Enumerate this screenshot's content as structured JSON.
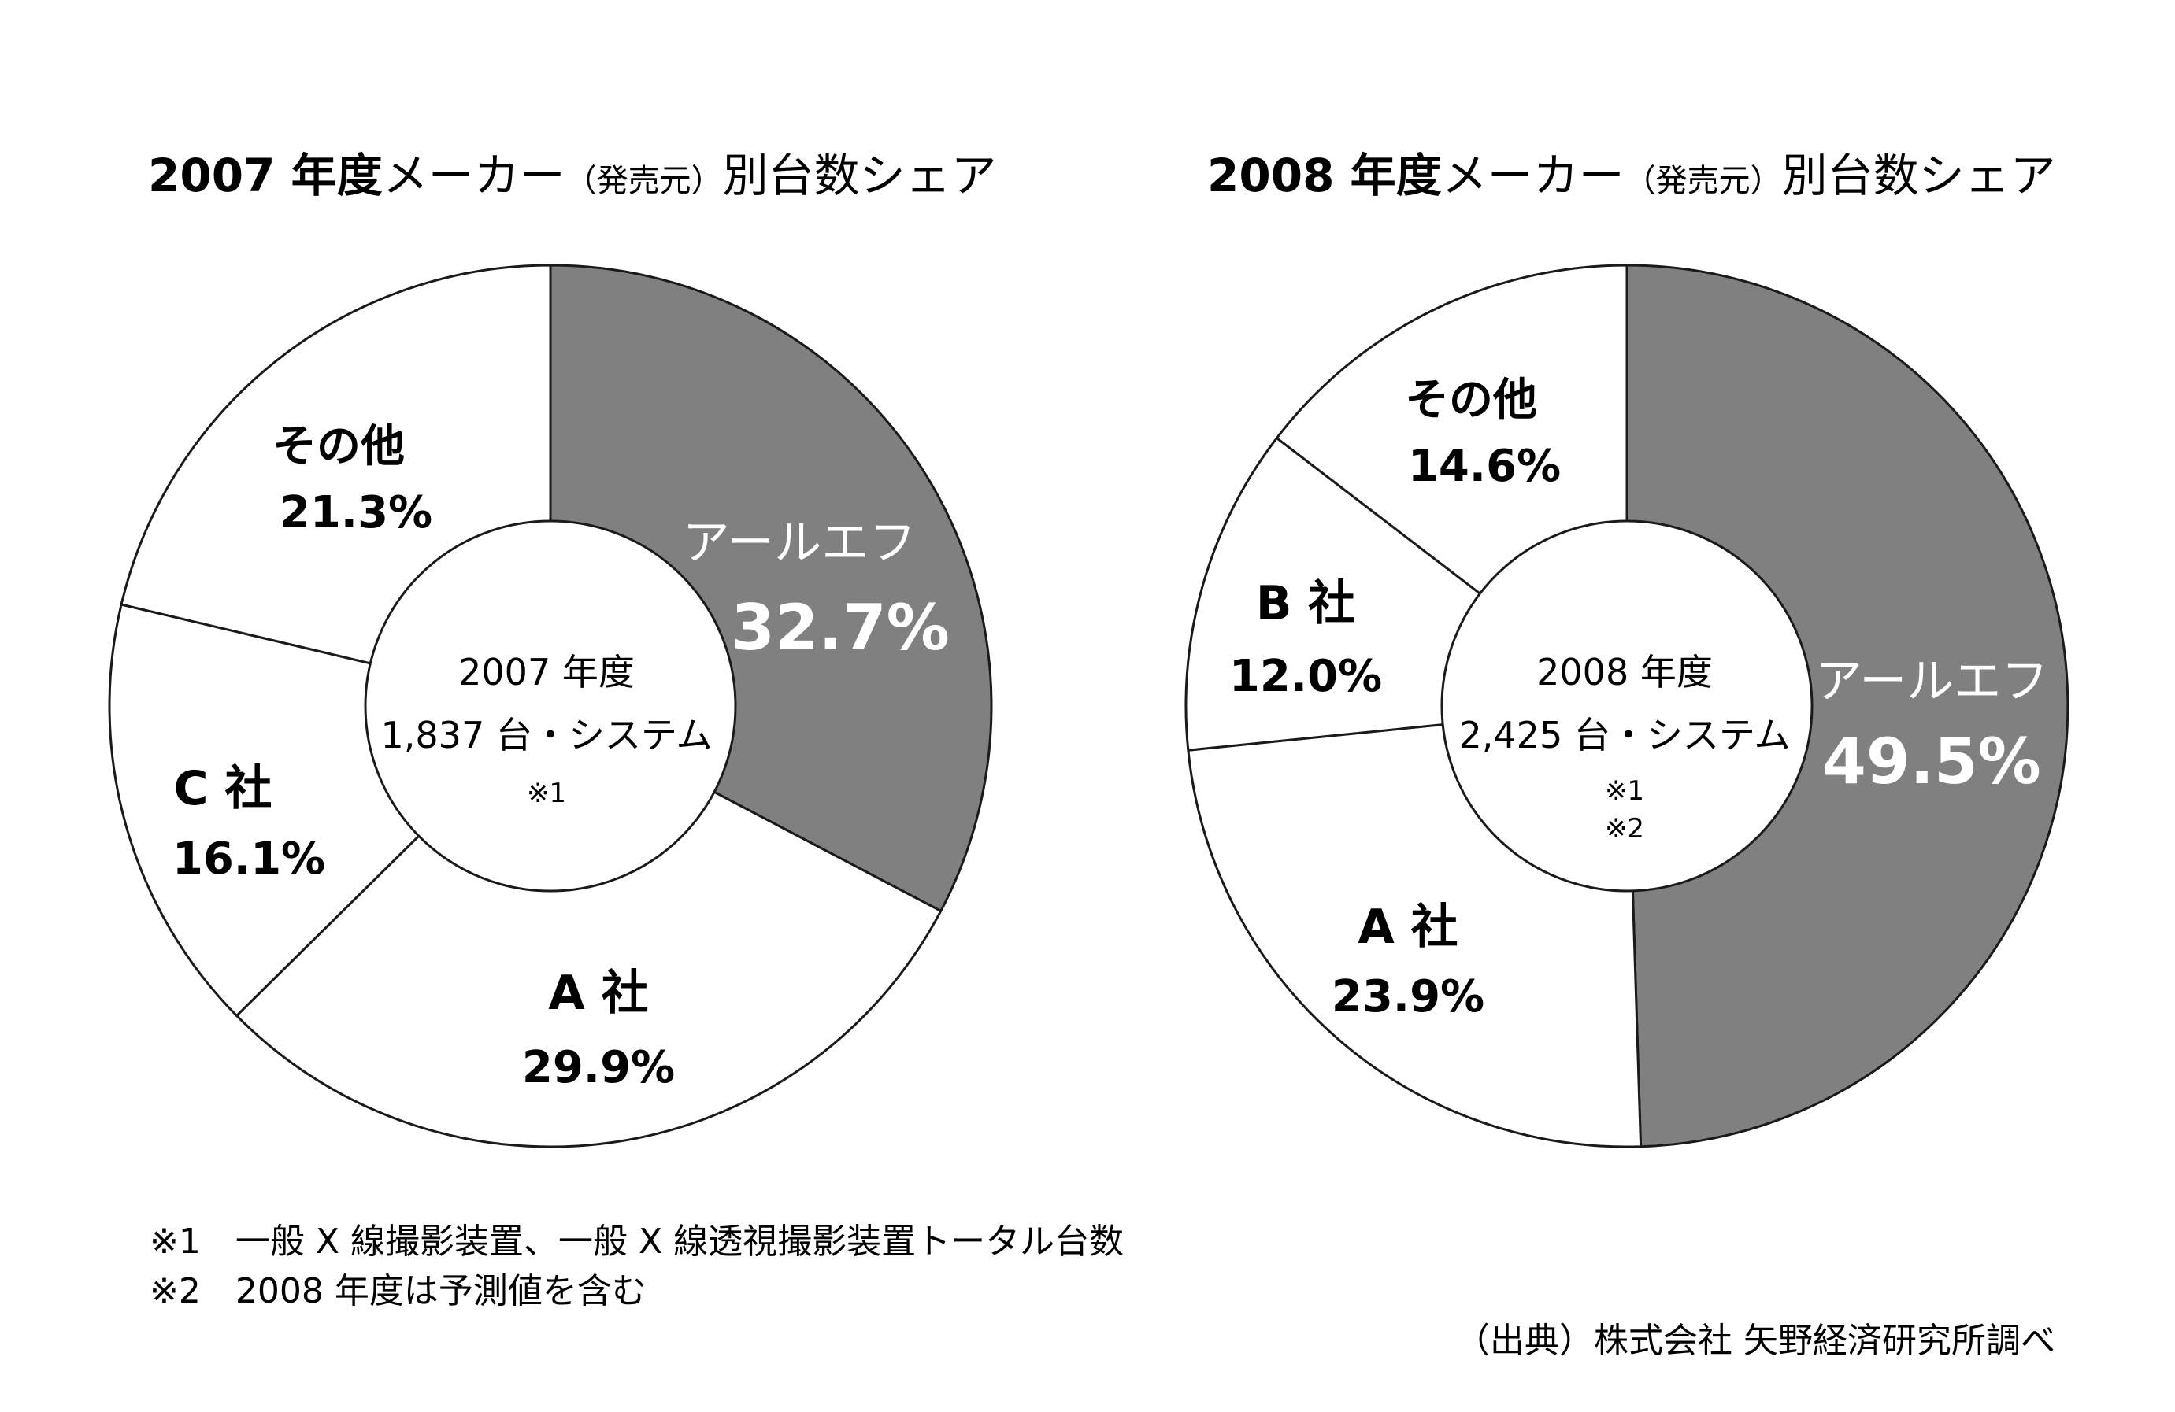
{
  "chart_data": [
    {
      "type": "pie",
      "title_year": "2007 年度",
      "title_rest_1": "メーカー",
      "title_small": "（発売元）",
      "title_rest_2": "別台数シェア",
      "center_year": "2007 年度",
      "center_total": "1,837 台・システム",
      "center_notes": [
        "※1"
      ],
      "slices": [
        {
          "name": "アールエフ",
          "value": 32.7,
          "label": "32.7%",
          "color": "#808080",
          "text_color": "#ffffff"
        },
        {
          "name": "A 社",
          "value": 29.9,
          "label": "29.9%",
          "color": "#ffffff",
          "text_color": "#1a1a1a"
        },
        {
          "name": "C 社",
          "value": 16.1,
          "label": "16.1%",
          "color": "#ffffff",
          "text_color": "#1a1a1a"
        },
        {
          "name": "その他",
          "value": 21.3,
          "label": "21.3%",
          "color": "#ffffff",
          "text_color": "#1a1a1a"
        }
      ]
    },
    {
      "type": "pie",
      "title_year": "2008 年度",
      "title_rest_1": "メーカー",
      "title_small": "（発売元）",
      "title_rest_2": "別台数シェア",
      "center_year": "2008 年度",
      "center_total": "2,425 台・システム",
      "center_notes": [
        "※1",
        "※2"
      ],
      "slices": [
        {
          "name": "アールエフ",
          "value": 49.5,
          "label": "49.5%",
          "color": "#808080",
          "text_color": "#ffffff"
        },
        {
          "name": "A 社",
          "value": 23.9,
          "label": "23.9%",
          "color": "#ffffff",
          "text_color": "#1a1a1a"
        },
        {
          "name": "B 社",
          "value": 12.0,
          "label": "12.0%",
          "color": "#ffffff",
          "text_color": "#1a1a1a"
        },
        {
          "name": "その他",
          "value": 14.6,
          "label": "14.6%",
          "color": "#ffffff",
          "text_color": "#1a1a1a"
        }
      ]
    }
  ],
  "footnotes": [
    "※1　一般 X 線撮影装置、一般 X 線透視撮影装置トータル台数",
    "※2　2008 年度は予測値を含む"
  ],
  "source": "（出典）株式会社 矢野経済研究所調べ"
}
